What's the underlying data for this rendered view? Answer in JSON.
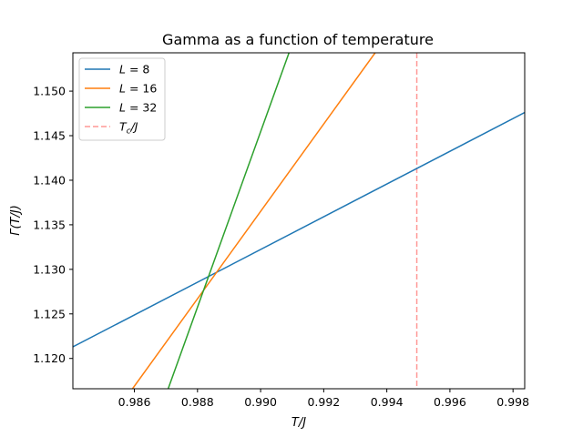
{
  "chart_data": {
    "type": "line",
    "title": "Gamma as a function of temperature",
    "xlabel": "T/J",
    "ylabel": "Γ(T/J)",
    "xlim": [
      0.98405,
      0.99837
    ],
    "ylim": [
      1.1166,
      1.1543
    ],
    "xticks": [
      0.986,
      0.988,
      0.99,
      0.992,
      0.994,
      0.996,
      0.998
    ],
    "xtick_labels": [
      "0.986",
      "0.988",
      "0.990",
      "0.992",
      "0.994",
      "0.996",
      "0.998"
    ],
    "yticks": [
      1.12,
      1.125,
      1.13,
      1.135,
      1.14,
      1.145,
      1.15
    ],
    "ytick_labels": [
      "1.120",
      "1.125",
      "1.130",
      "1.135",
      "1.140",
      "1.145",
      "1.150"
    ],
    "grid": false,
    "legend_position": "top-left",
    "series": [
      {
        "name": "L = 8",
        "color": "#1f77b4",
        "style": "solid",
        "x": [
          0.98405,
          0.99837
        ],
        "y": [
          1.1213,
          1.1476
        ]
      },
      {
        "name": "L = 16",
        "color": "#ff7f0e",
        "style": "solid",
        "x": [
          0.98594,
          0.99363
        ],
        "y": [
          1.1166,
          1.1543
        ]
      },
      {
        "name": "L = 32",
        "color": "#2ca02c",
        "style": "solid",
        "x": [
          0.98707,
          0.9909
        ],
        "y": [
          1.1166,
          1.1543
        ]
      }
    ],
    "vlines": [
      {
        "name": "T_c/J",
        "x": 0.99495,
        "color": "#ff9896",
        "style": "dashed"
      }
    ],
    "legend_entries": [
      {
        "var": "L",
        "op": " = ",
        "num": "8",
        "color": "#1f77b4",
        "style": "solid"
      },
      {
        "var": "L",
        "op": " = ",
        "num": "16",
        "color": "#ff7f0e",
        "style": "solid"
      },
      {
        "var": "L",
        "op": " = ",
        "num": "32",
        "color": "#2ca02c",
        "style": "solid"
      },
      {
        "var": "T",
        "sub": "c",
        "rest": "/J",
        "color": "#ff9896",
        "style": "dashed"
      }
    ]
  }
}
